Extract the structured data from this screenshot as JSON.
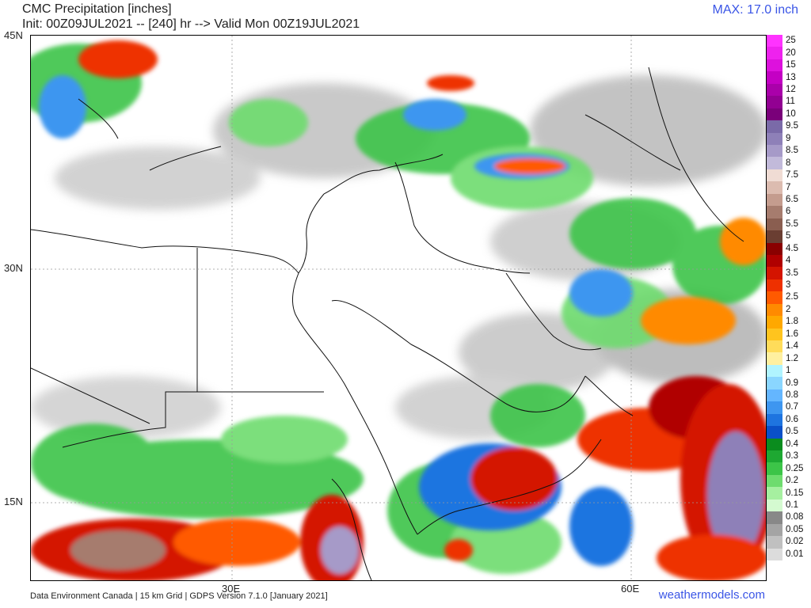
{
  "header": {
    "title": "CMC Precipitation [inches]",
    "subtitle": "Init: 00Z09JUL2021 -- [240] hr --> Valid Mon 00Z19JUL2021",
    "max": "MAX: 17.0 inch"
  },
  "axes": {
    "latitudes": [
      {
        "label": "45N",
        "value": 45
      },
      {
        "label": "30N",
        "value": 30
      },
      {
        "label": "15N",
        "value": 15
      }
    ],
    "longitudes": [
      {
        "label": "30E",
        "value": 30
      },
      {
        "label": "60E",
        "value": 60
      }
    ]
  },
  "legend": {
    "units": "inches",
    "levels": [
      {
        "label": "25",
        "color": "#ff33ff"
      },
      {
        "label": "20",
        "color": "#ee22ee"
      },
      {
        "label": "15",
        "color": "#dd11dd"
      },
      {
        "label": "13",
        "color": "#c400c4"
      },
      {
        "label": "12",
        "color": "#aa00aa"
      },
      {
        "label": "11",
        "color": "#920092"
      },
      {
        "label": "10",
        "color": "#7a007a"
      },
      {
        "label": "9.5",
        "color": "#7a6aa8"
      },
      {
        "label": "9",
        "color": "#8e80b8"
      },
      {
        "label": "8.5",
        "color": "#a69ac8"
      },
      {
        "label": "8",
        "color": "#c2bada"
      },
      {
        "label": "7.5",
        "color": "#f0dcd4"
      },
      {
        "label": "7",
        "color": "#dcbcb0"
      },
      {
        "label": "6.5",
        "color": "#c49c8e"
      },
      {
        "label": "6",
        "color": "#a67c6e"
      },
      {
        "label": "5.5",
        "color": "#8a5e50"
      },
      {
        "label": "5",
        "color": "#6a3e32"
      },
      {
        "label": "4.5",
        "color": "#8a0000"
      },
      {
        "label": "4",
        "color": "#b00000"
      },
      {
        "label": "3.5",
        "color": "#d41400"
      },
      {
        "label": "3",
        "color": "#ee3000"
      },
      {
        "label": "2.5",
        "color": "#ff5a00"
      },
      {
        "label": "2",
        "color": "#ff8a00"
      },
      {
        "label": "1.8",
        "color": "#ffa800"
      },
      {
        "label": "1.6",
        "color": "#ffc41e"
      },
      {
        "label": "1.4",
        "color": "#ffdc5a"
      },
      {
        "label": "1.2",
        "color": "#fff0a0"
      },
      {
        "label": "1",
        "color": "#b0f4ff"
      },
      {
        "label": "0.9",
        "color": "#8ad6ff"
      },
      {
        "label": "0.8",
        "color": "#64b6ff"
      },
      {
        "label": "0.7",
        "color": "#3e96f0"
      },
      {
        "label": "0.6",
        "color": "#1e74e0"
      },
      {
        "label": "0.5",
        "color": "#0a50c8"
      },
      {
        "label": "0.4",
        "color": "#0a8c1e"
      },
      {
        "label": "0.3",
        "color": "#1ea832"
      },
      {
        "label": "0.25",
        "color": "#3cc448"
      },
      {
        "label": "0.2",
        "color": "#6edc6e"
      },
      {
        "label": "0.15",
        "color": "#a6f0a0"
      },
      {
        "label": "0.1",
        "color": "#d4fad0"
      },
      {
        "label": "0.08",
        "color": "#888888"
      },
      {
        "label": "0.05",
        "color": "#a4a4a4"
      },
      {
        "label": "0.02",
        "color": "#c0c0c0"
      },
      {
        "label": "0.01",
        "color": "#dcdcdc"
      }
    ]
  },
  "footer": {
    "credit": "Data Environment Canada | 15 km Grid | GDPS Version 7.1.0 [January 2021]",
    "site": "weathermodels.com"
  },
  "colors": {
    "accent": "#3a55e6",
    "coastline": "#111111",
    "gridline": "#999999"
  }
}
